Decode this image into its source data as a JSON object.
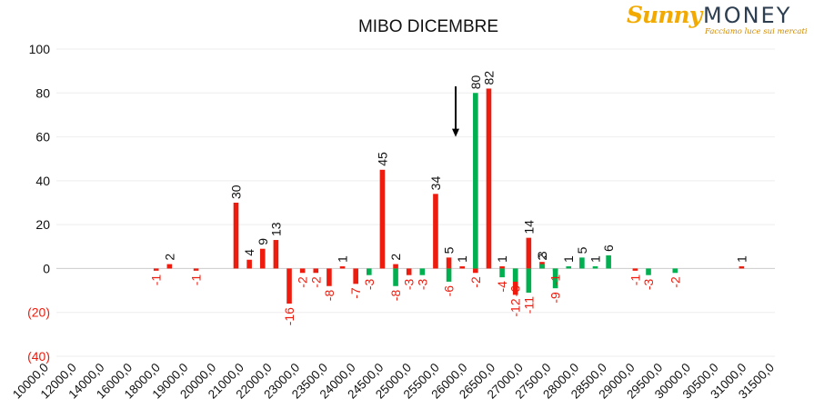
{
  "logo": {
    "brand_left": "Sunny",
    "brand_right": "MONEY",
    "tagline": "Facciamo luce sui mercati"
  },
  "chart_data": {
    "type": "bar",
    "title": "MIBO DICEMBRE",
    "ylim": [
      -40,
      100
    ],
    "yticks": [
      {
        "value": 100,
        "label": "100"
      },
      {
        "value": 80,
        "label": "80"
      },
      {
        "value": 60,
        "label": "60"
      },
      {
        "value": 40,
        "label": "40"
      },
      {
        "value": 20,
        "label": "20"
      },
      {
        "value": 0,
        "label": "0"
      },
      {
        "value": -20,
        "label": "(20)"
      },
      {
        "value": -40,
        "label": "(40)"
      }
    ],
    "grid": true,
    "colors": {
      "positive": "#ee1c0e",
      "negative": "#e8282c",
      "green": "#00b050",
      "label_negative": "#ee1c0e",
      "grid": "#eeeeee",
      "axis": "#cccccc"
    },
    "x_tick_labels": [
      "10000,0",
      "12000,0",
      "14000,0",
      "16000,0",
      "18000,0",
      "19000,0",
      "20000,0",
      "21000,0",
      "22000,0",
      "23000,0",
      "23500,0",
      "24000,0",
      "24500,0",
      "25000,0",
      "25500,0",
      "26000,0",
      "26500,0",
      "27000,0",
      "27500,0",
      "28000,0",
      "28500,0",
      "29000,0",
      "29500,0",
      "30000,0",
      "30500,0",
      "31000,0",
      "31500,0"
    ],
    "series": [
      {
        "color": "red",
        "points": [
          {
            "slot": 7,
            "value": -1
          },
          {
            "slot": 8,
            "value": 2
          },
          {
            "slot": 10,
            "value": -1
          },
          {
            "slot": 13,
            "value": 30
          },
          {
            "slot": 14,
            "value": 4
          },
          {
            "slot": 15,
            "value": 9
          },
          {
            "slot": 16,
            "value": 13
          },
          {
            "slot": 17,
            "value": -16
          },
          {
            "slot": 18,
            "value": -2
          },
          {
            "slot": 19,
            "value": -2
          },
          {
            "slot": 20,
            "value": -8
          },
          {
            "slot": 21,
            "value": 1
          },
          {
            "slot": 22,
            "value": -7
          },
          {
            "slot": 24,
            "value": 45
          },
          {
            "slot": 25,
            "value": 2
          },
          {
            "slot": 26,
            "value": -3
          },
          {
            "slot": 28,
            "value": 34
          },
          {
            "slot": 29,
            "value": 5
          },
          {
            "slot": 30,
            "value": 1
          },
          {
            "slot": 31,
            "value": -2
          },
          {
            "slot": 32,
            "value": 82
          },
          {
            "slot": 33,
            "value": 1
          },
          {
            "slot": 34,
            "value": -12
          },
          {
            "slot": 35,
            "value": 14
          },
          {
            "slot": 36,
            "value": 3
          },
          {
            "slot": 37,
            "value": -1
          },
          {
            "slot": 43,
            "value": -1
          },
          {
            "slot": 51,
            "value": 1
          }
        ]
      },
      {
        "color": "green",
        "points": [
          {
            "slot": 23,
            "value": -3
          },
          {
            "slot": 25,
            "value": -8
          },
          {
            "slot": 27,
            "value": -3
          },
          {
            "slot": 29,
            "value": -6
          },
          {
            "slot": 31,
            "value": 80
          },
          {
            "slot": 33,
            "value": -4
          },
          {
            "slot": 34,
            "value": -6
          },
          {
            "slot": 35,
            "value": -11
          },
          {
            "slot": 36,
            "value": 2
          },
          {
            "slot": 37,
            "value": -9
          },
          {
            "slot": 38,
            "value": 1
          },
          {
            "slot": 39,
            "value": 5
          },
          {
            "slot": 40,
            "value": 1
          },
          {
            "slot": 41,
            "value": 6
          },
          {
            "slot": 44,
            "value": -3
          },
          {
            "slot": 46,
            "value": -2
          }
        ]
      }
    ],
    "annotation": {
      "type": "arrow",
      "points_to_value": 60
    }
  }
}
